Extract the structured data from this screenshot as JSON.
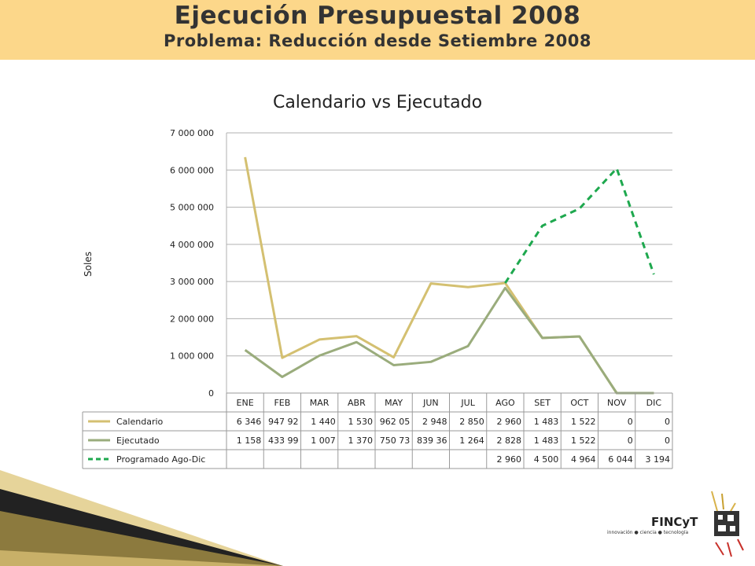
{
  "slide": {
    "title": "Ejecución Presupuestal 2008",
    "subtitle": "Problema: Reducción desde Setiembre 2008",
    "band_color": "#fcd78a"
  },
  "logo": {
    "name": "FINCyT",
    "tagline": "innovación ● ciencia ● tecnología",
    "icon": "fincyt-logo-icon"
  },
  "chart_data": {
    "type": "line",
    "title": "Calendario vs Ejecutado",
    "ylabel": "Soles",
    "xlabel": "",
    "ylim": [
      0,
      7000000
    ],
    "yticks": [
      0,
      1000000,
      2000000,
      3000000,
      4000000,
      5000000,
      6000000,
      7000000
    ],
    "ytick_labels": [
      "0",
      "1 000 000",
      "2 000 000",
      "3 000 000",
      "4 000 000",
      "5 000 000",
      "6 000 000",
      "7 000 000"
    ],
    "grid": true,
    "legend": "data-table",
    "categories": [
      "ENE",
      "FEB",
      "MAR",
      "ABR",
      "MAY",
      "JUN",
      "JUL",
      "AGO",
      "SET",
      "OCT",
      "NOV",
      "DIC"
    ],
    "series": [
      {
        "name": "Calendario",
        "color": "#d4c071",
        "style": "solid",
        "values": [
          6346000,
          947920,
          1440000,
          1530000,
          962050,
          2948000,
          2850000,
          2960000,
          1483000,
          1522000,
          0,
          0
        ],
        "labels": [
          "6 346",
          "947 92",
          "1 440",
          "1 530",
          "962 05",
          "2 948",
          "2 850",
          "2 960",
          "1 483",
          "1 522",
          "0",
          "0"
        ]
      },
      {
        "name": "Ejecutado",
        "color": "#9aac7c",
        "style": "solid",
        "values": [
          1158000,
          433990,
          1007000,
          1370000,
          750730,
          839360,
          1264000,
          2828000,
          1483000,
          1522000,
          0,
          0
        ],
        "labels": [
          "1 158",
          "433 99",
          "1 007",
          "1 370",
          "750 73",
          "839 36",
          "1 264",
          "2 828",
          "1 483",
          "1 522",
          "0",
          "0"
        ]
      },
      {
        "name": "Programado Ago-Dic",
        "color": "#1ea84e",
        "style": "dashed",
        "values": [
          null,
          null,
          null,
          null,
          null,
          null,
          null,
          2960000,
          4500000,
          4964000,
          6044000,
          3194000
        ],
        "labels": [
          "",
          "",
          "",
          "",
          "",
          "",
          "",
          "2 960",
          "4 500",
          "4 964",
          "6 044",
          "3 194"
        ]
      }
    ]
  }
}
